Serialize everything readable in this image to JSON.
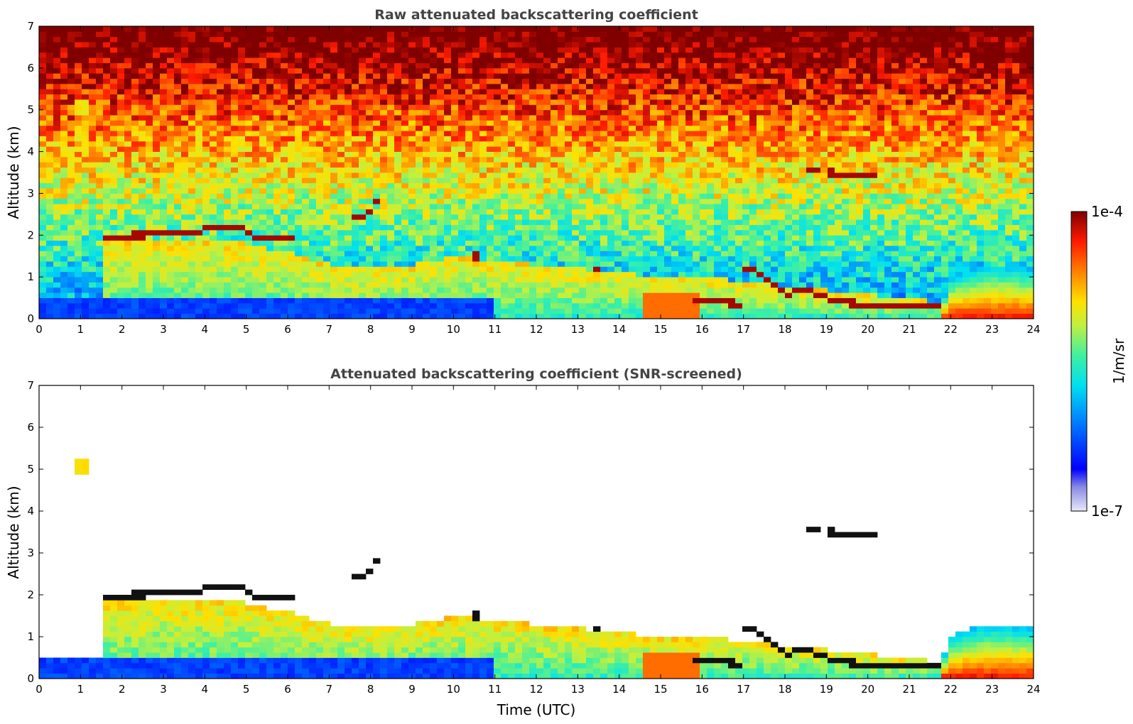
{
  "chart_data": [
    {
      "type": "heatmap",
      "title": "Raw attenuated backscattering coefficient",
      "xlabel": "",
      "ylabel": "Altitude (km)",
      "xlim": [
        0,
        24
      ],
      "ylim": [
        0,
        7
      ],
      "xticks": [
        "0",
        "1",
        "2",
        "3",
        "4",
        "5",
        "6",
        "7",
        "8",
        "9",
        "10",
        "11",
        "12",
        "13",
        "14",
        "15",
        "16",
        "17",
        "18",
        "19",
        "20",
        "21",
        "22",
        "23",
        "24"
      ],
      "yticks": [
        "0",
        "1",
        "2",
        "3",
        "4",
        "5",
        "6",
        "7"
      ],
      "screened": false
    },
    {
      "type": "heatmap",
      "title": "Attenuated backscattering coefficient (SNR-screened)",
      "xlabel": "Time (UTC)",
      "ylabel": "Altitude (km)",
      "xlim": [
        0,
        24
      ],
      "ylim": [
        0,
        7
      ],
      "xticks": [
        "0",
        "1",
        "2",
        "3",
        "4",
        "5",
        "6",
        "7",
        "8",
        "9",
        "10",
        "11",
        "12",
        "13",
        "14",
        "15",
        "16",
        "17",
        "18",
        "19",
        "20",
        "21",
        "22",
        "23",
        "24"
      ],
      "yticks": [
        "0",
        "1",
        "2",
        "3",
        "4",
        "5",
        "6",
        "7"
      ],
      "screened": true
    }
  ],
  "colorbar": {
    "label": "1/m/sr",
    "max_label": "1e-4",
    "min_label": "1e-7",
    "scale": "log",
    "colormap": "jet"
  },
  "features": {
    "cloud_layers": [
      {
        "points": [
          [
            1.6,
            1.97
          ],
          [
            2.5,
            2.0
          ],
          [
            3.8,
            2.1
          ],
          [
            4.7,
            2.25
          ],
          [
            5.2,
            1.95
          ],
          [
            6.2,
            1.9
          ]
        ]
      },
      {
        "points": [
          [
            7.6,
            2.5
          ],
          [
            7.8,
            2.4
          ],
          [
            8.0,
            2.6
          ]
        ]
      },
      {
        "points": [
          [
            8.1,
            2.78
          ],
          [
            8.3,
            2.78
          ]
        ]
      },
      {
        "points": [
          [
            17.0,
            1.25
          ],
          [
            17.5,
            1.0
          ],
          [
            18.0,
            0.6
          ],
          [
            18.5,
            0.7
          ],
          [
            19.0,
            0.5
          ],
          [
            19.5,
            0.4
          ],
          [
            20.2,
            0.3
          ],
          [
            21.5,
            0.3
          ],
          [
            21.7,
            0.3
          ]
        ]
      },
      {
        "points": [
          [
            15.8,
            0.45
          ],
          [
            16.5,
            0.4
          ],
          [
            17.0,
            0.35
          ]
        ]
      },
      {
        "points": [
          [
            18.6,
            3.58
          ],
          [
            18.8,
            3.55
          ]
        ]
      },
      {
        "points": [
          [
            19.1,
            3.5
          ],
          [
            19.6,
            3.45
          ],
          [
            20.2,
            3.48
          ]
        ]
      },
      {
        "points": [
          [
            10.5,
            1.5
          ],
          [
            10.7,
            1.5
          ]
        ]
      },
      {
        "points": [
          [
            13.4,
            1.2
          ],
          [
            13.5,
            1.1
          ]
        ]
      }
    ],
    "aerosol_layer_top": [
      [
        1.5,
        1.9
      ],
      [
        3,
        1.9
      ],
      [
        4.5,
        1.9
      ],
      [
        6,
        1.6
      ],
      [
        7,
        1.3
      ],
      [
        8,
        1.2
      ],
      [
        9,
        1.3
      ],
      [
        10,
        1.5
      ],
      [
        11,
        1.4
      ],
      [
        12,
        1.3
      ],
      [
        13,
        1.2
      ],
      [
        14,
        1.1
      ],
      [
        15,
        1.0
      ],
      [
        16,
        1.0
      ],
      [
        17,
        0.9
      ],
      [
        18,
        0.8
      ],
      [
        21.8,
        0.4
      ],
      [
        22,
        1.0
      ],
      [
        22.5,
        1.2
      ],
      [
        23,
        1.3
      ],
      [
        24,
        1.2
      ]
    ],
    "isolated_patch": {
      "x": [
        0.9,
        1.2
      ],
      "y": [
        4.9,
        5.3
      ]
    }
  }
}
